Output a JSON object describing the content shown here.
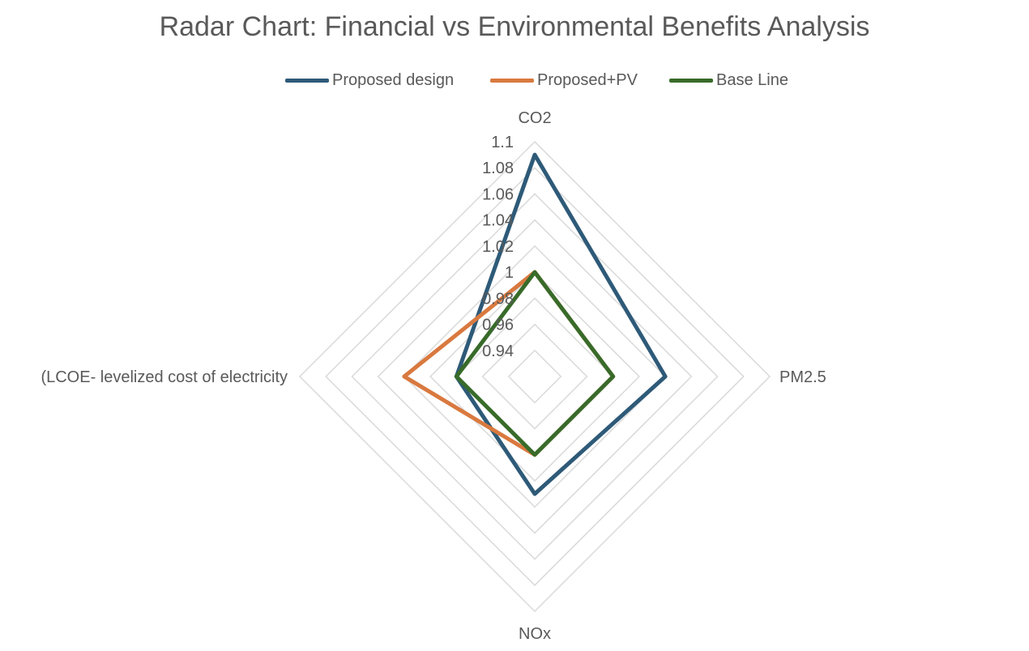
{
  "chart_data": {
    "type": "radar",
    "title": "Radar Chart: Financial vs Environmental Benefits Analysis",
    "axes": [
      "CO2",
      "PM2.5",
      "NOx",
      "(LCOE- levelized cost of electricity"
    ],
    "rlim": [
      0.92,
      1.1
    ],
    "ticks": [
      0.94,
      0.96,
      0.98,
      1,
      1.02,
      1.04,
      1.06,
      1.08,
      1.1
    ],
    "tick_labels": [
      "0.94",
      "0.96",
      "0.98",
      "1",
      "1.02",
      "1.04",
      "1.06",
      "1.08",
      "1.1"
    ],
    "series": [
      {
        "name": "Proposed design",
        "color": "#2E5A78",
        "values": [
          1.09,
          1.02,
          1.01,
          0.98
        ]
      },
      {
        "name": "Proposed+PV",
        "color": "#D9793F",
        "values": [
          1.0,
          0.98,
          0.98,
          1.02
        ]
      },
      {
        "name": "Base Line",
        "color": "#386B2A",
        "values": [
          1.0,
          0.98,
          0.98,
          0.98
        ]
      }
    ],
    "legend_position": "top"
  }
}
